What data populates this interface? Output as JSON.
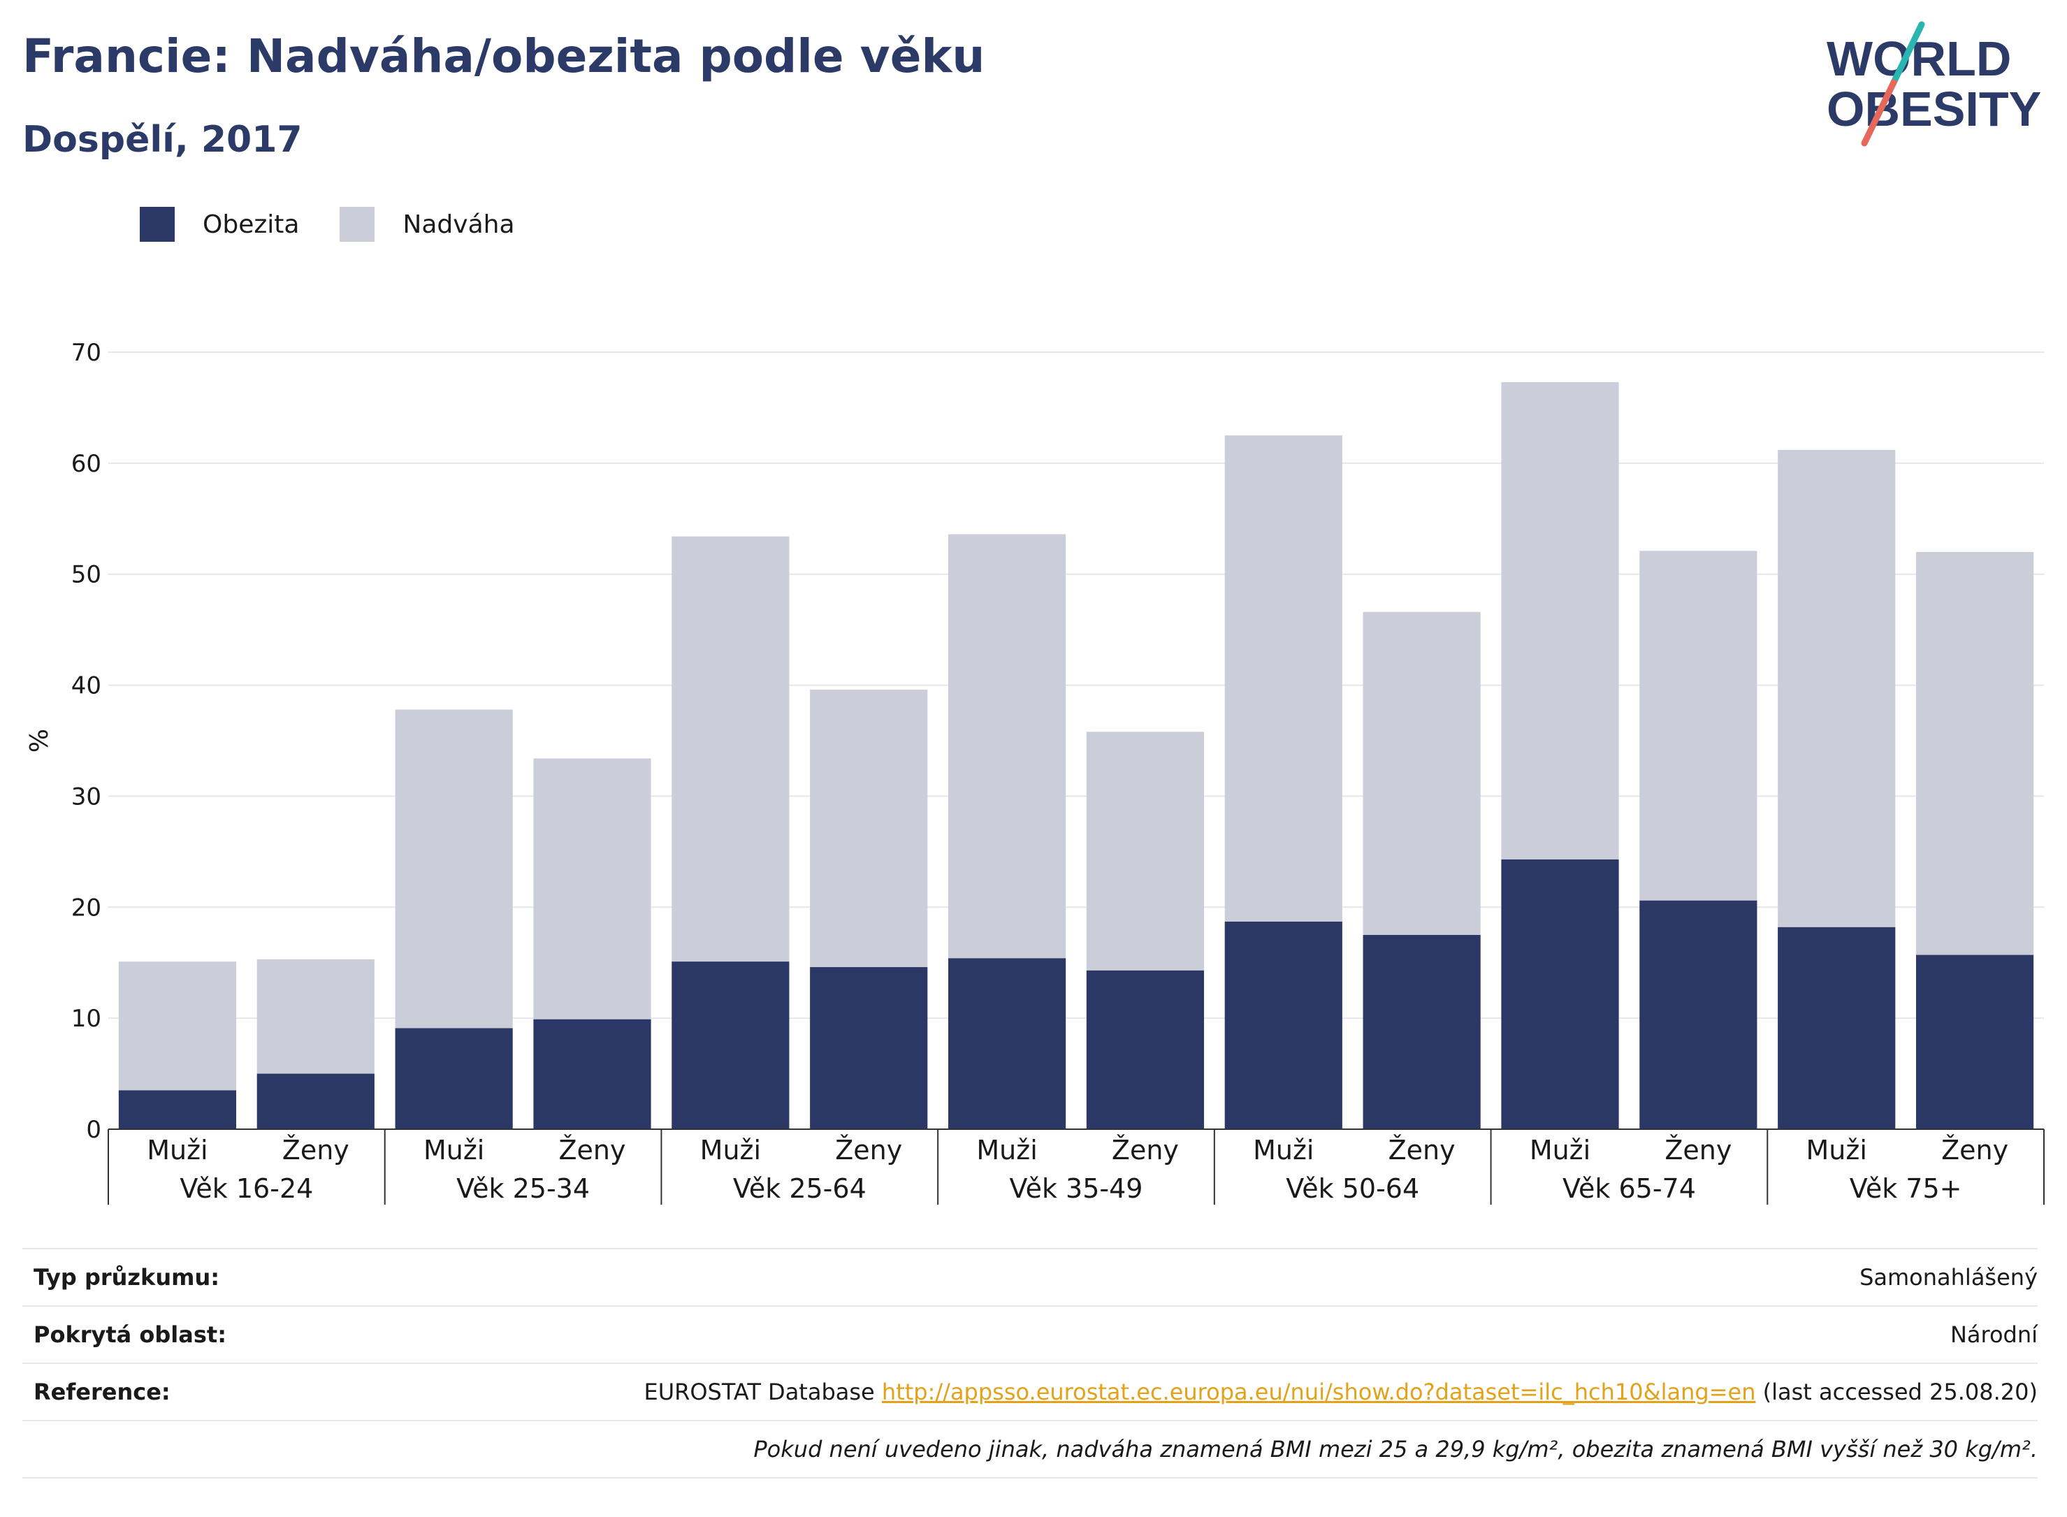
{
  "title": "Francie: Nadváha/obezita podle věku",
  "subtitle": "Dospělí, 2017",
  "logo": {
    "line1": "WORLD",
    "line2": "OBESITY"
  },
  "colors": {
    "obezita": "#2b3765",
    "nadvaha": "#cbcdd8",
    "brand": "#2b3a67",
    "accent_teal": "#2bb5b0",
    "accent_red": "#e5685a",
    "link": "#e3a21a"
  },
  "legend": [
    {
      "label": "Obezita",
      "color": "#2b3765"
    },
    {
      "label": "Nadváha",
      "color": "#cbcdd8"
    }
  ],
  "chart_data": {
    "type": "bar",
    "stacked": true,
    "ylabel": "%",
    "ylim": [
      0,
      70
    ],
    "yticks": [
      0,
      10,
      20,
      30,
      40,
      50,
      60,
      70
    ],
    "grid": true,
    "legend_position": "top-left",
    "groups": [
      "Věk 16-24",
      "Věk 25-34",
      "Věk 25-64",
      "Věk 35-49",
      "Věk 50-64",
      "Věk 65-74",
      "Věk 75+"
    ],
    "subcategories": [
      "Muži",
      "Ženy"
    ],
    "categories": [
      "Muži",
      "Ženy",
      "Muži",
      "Ženy",
      "Muži",
      "Ženy",
      "Muži",
      "Ženy",
      "Muži",
      "Ženy",
      "Muži",
      "Ženy",
      "Muži",
      "Ženy"
    ],
    "series": [
      {
        "name": "Obezita",
        "values": [
          3.5,
          5.0,
          9.1,
          9.9,
          15.1,
          14.6,
          15.4,
          14.3,
          18.7,
          17.5,
          24.3,
          20.6,
          18.2,
          15.7
        ]
      },
      {
        "name": "Nadváha",
        "values": [
          11.6,
          10.3,
          28.7,
          23.5,
          38.3,
          25.0,
          38.2,
          21.5,
          43.8,
          29.1,
          43.0,
          31.5,
          43.0,
          36.3
        ]
      }
    ]
  },
  "info": [
    {
      "key": "Typ průzkumu:",
      "value": "Samonahlášený"
    },
    {
      "key": "Pokrytá oblast:",
      "value": "Národní"
    },
    {
      "key": "Reference:",
      "value_prefix": "EUROSTAT Database ",
      "link": "http://appsso.eurostat.ec.europa.eu/nui/show.do?dataset=ilc_hch10&lang=en",
      "value_suffix": " (last accessed 25.08.20)"
    }
  ],
  "note": "Pokud není uvedeno jinak, nadváha znamená BMI mezi 25 a 29,9 kg/m², obezita znamená BMI vyšší než 30 kg/m²."
}
